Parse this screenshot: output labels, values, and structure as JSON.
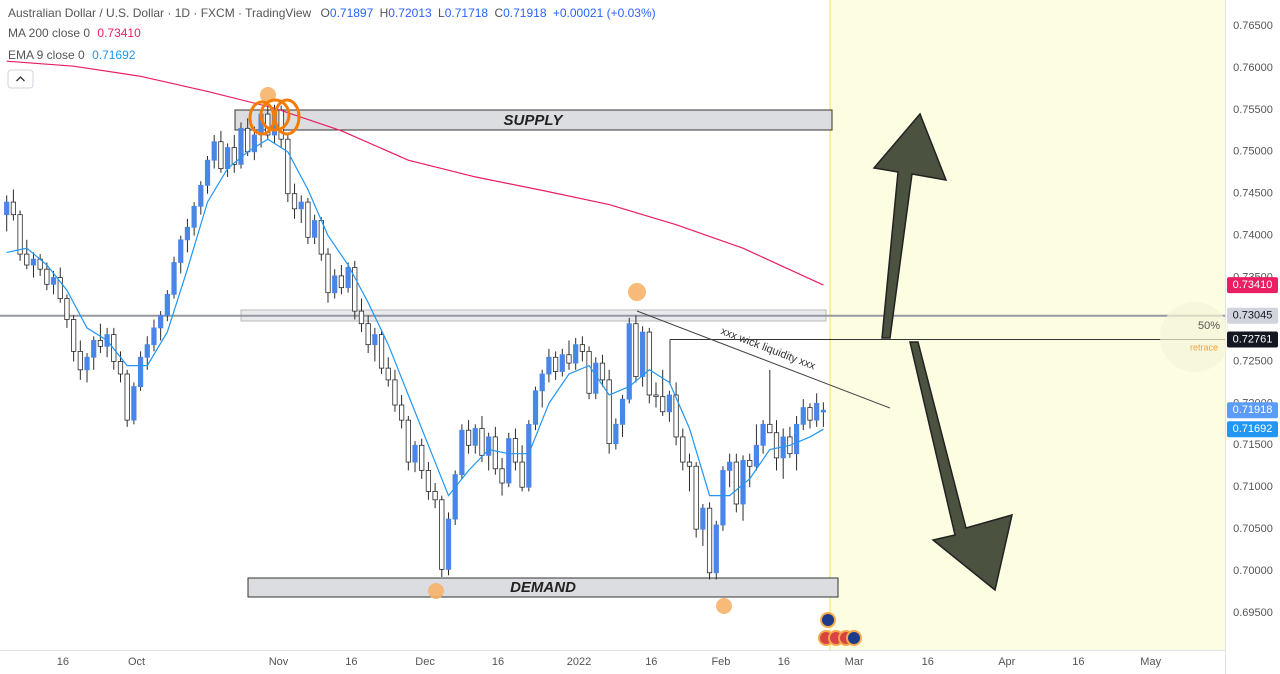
{
  "header": {
    "symbol": "Australian Dollar / U.S. Dollar · 1D · FXCM · TradingView",
    "open_label": "O",
    "open": "0.71897",
    "high_label": "H",
    "high": "0.72013",
    "low_label": "L",
    "low": "0.71718",
    "close_label": "C",
    "close": "0.71918",
    "change": "+0.00021 (+0.03%)"
  },
  "chart_data": {
    "type": "candlestick",
    "up_color": "#4a86e8",
    "down_color": "#ffffff",
    "wick_color": "#2b2b2b",
    "candles": [
      [
        0.7425,
        0.7448,
        0.7405,
        0.744
      ],
      [
        0.744,
        0.7455,
        0.7418,
        0.7425
      ],
      [
        0.7425,
        0.743,
        0.737,
        0.7378
      ],
      [
        0.7378,
        0.7395,
        0.736,
        0.7365
      ],
      [
        0.7365,
        0.738,
        0.735,
        0.7372
      ],
      [
        0.7372,
        0.7378,
        0.7352,
        0.736
      ],
      [
        0.736,
        0.7368,
        0.7335,
        0.7342
      ],
      [
        0.7342,
        0.7358,
        0.733,
        0.735
      ],
      [
        0.735,
        0.7362,
        0.732,
        0.7325
      ],
      [
        0.7325,
        0.733,
        0.729,
        0.73
      ],
      [
        0.73,
        0.7305,
        0.725,
        0.7262
      ],
      [
        0.7262,
        0.7275,
        0.7228,
        0.724
      ],
      [
        0.724,
        0.726,
        0.7225,
        0.7255
      ],
      [
        0.7255,
        0.728,
        0.724,
        0.7275
      ],
      [
        0.7275,
        0.7295,
        0.726,
        0.7268
      ],
      [
        0.7268,
        0.729,
        0.7255,
        0.7282
      ],
      [
        0.7282,
        0.729,
        0.724,
        0.725
      ],
      [
        0.725,
        0.7262,
        0.7225,
        0.7235
      ],
      [
        0.7235,
        0.724,
        0.7172,
        0.718
      ],
      [
        0.718,
        0.7225,
        0.7175,
        0.722
      ],
      [
        0.722,
        0.7262,
        0.7215,
        0.7255
      ],
      [
        0.7255,
        0.728,
        0.724,
        0.727
      ],
      [
        0.727,
        0.73,
        0.7262,
        0.729
      ],
      [
        0.729,
        0.731,
        0.7275,
        0.7305
      ],
      [
        0.7305,
        0.7335,
        0.7298,
        0.733
      ],
      [
        0.733,
        0.7375,
        0.7325,
        0.7368
      ],
      [
        0.7368,
        0.74,
        0.7355,
        0.7395
      ],
      [
        0.7395,
        0.742,
        0.738,
        0.741
      ],
      [
        0.741,
        0.744,
        0.74,
        0.7435
      ],
      [
        0.7435,
        0.7465,
        0.7425,
        0.746
      ],
      [
        0.746,
        0.7495,
        0.745,
        0.749
      ],
      [
        0.749,
        0.752,
        0.748,
        0.7512
      ],
      [
        0.7512,
        0.7525,
        0.7475,
        0.748
      ],
      [
        0.748,
        0.751,
        0.747,
        0.7505
      ],
      [
        0.7505,
        0.752,
        0.7475,
        0.7485
      ],
      [
        0.7485,
        0.7535,
        0.748,
        0.7528
      ],
      [
        0.7528,
        0.754,
        0.7495,
        0.75
      ],
      [
        0.75,
        0.753,
        0.749,
        0.752
      ],
      [
        0.752,
        0.755,
        0.7505,
        0.7545
      ],
      [
        0.7545,
        0.7555,
        0.7515,
        0.752
      ],
      [
        0.752,
        0.7556,
        0.751,
        0.755
      ],
      [
        0.755,
        0.7555,
        0.7505,
        0.7515
      ],
      [
        0.7515,
        0.752,
        0.744,
        0.745
      ],
      [
        0.745,
        0.7462,
        0.742,
        0.7432
      ],
      [
        0.7432,
        0.7448,
        0.7415,
        0.744
      ],
      [
        0.744,
        0.7445,
        0.739,
        0.7398
      ],
      [
        0.7398,
        0.7425,
        0.739,
        0.7418
      ],
      [
        0.7418,
        0.7422,
        0.737,
        0.7378
      ],
      [
        0.7378,
        0.7385,
        0.732,
        0.7332
      ],
      [
        0.7332,
        0.736,
        0.7325,
        0.7352
      ],
      [
        0.7352,
        0.7365,
        0.733,
        0.7338
      ],
      [
        0.7338,
        0.7368,
        0.7332,
        0.7362
      ],
      [
        0.7362,
        0.737,
        0.73,
        0.731
      ],
      [
        0.731,
        0.7325,
        0.7285,
        0.7295
      ],
      [
        0.7295,
        0.7305,
        0.726,
        0.727
      ],
      [
        0.727,
        0.729,
        0.725,
        0.7282
      ],
      [
        0.7282,
        0.7288,
        0.7235,
        0.7242
      ],
      [
        0.7242,
        0.7255,
        0.722,
        0.7228
      ],
      [
        0.7228,
        0.724,
        0.719,
        0.7198
      ],
      [
        0.7198,
        0.721,
        0.717,
        0.718
      ],
      [
        0.718,
        0.7185,
        0.712,
        0.713
      ],
      [
        0.713,
        0.7155,
        0.7118,
        0.715
      ],
      [
        0.715,
        0.7158,
        0.711,
        0.712
      ],
      [
        0.712,
        0.713,
        0.7085,
        0.7095
      ],
      [
        0.7095,
        0.7105,
        0.7075,
        0.7085
      ],
      [
        0.7085,
        0.709,
        0.6993,
        0.7002
      ],
      [
        0.7002,
        0.707,
        0.6995,
        0.7062
      ],
      [
        0.7062,
        0.712,
        0.7055,
        0.7115
      ],
      [
        0.7115,
        0.7175,
        0.711,
        0.7168
      ],
      [
        0.7168,
        0.718,
        0.714,
        0.715
      ],
      [
        0.715,
        0.7175,
        0.714,
        0.717
      ],
      [
        0.717,
        0.7185,
        0.713,
        0.7138
      ],
      [
        0.7138,
        0.7165,
        0.712,
        0.716
      ],
      [
        0.716,
        0.7172,
        0.7115,
        0.7122
      ],
      [
        0.7122,
        0.7135,
        0.709,
        0.7105
      ],
      [
        0.7105,
        0.7165,
        0.71,
        0.7158
      ],
      [
        0.7158,
        0.717,
        0.712,
        0.713
      ],
      [
        0.713,
        0.715,
        0.7095,
        0.71
      ],
      [
        0.71,
        0.718,
        0.7095,
        0.7175
      ],
      [
        0.7175,
        0.722,
        0.7168,
        0.7215
      ],
      [
        0.7215,
        0.724,
        0.7195,
        0.7235
      ],
      [
        0.7235,
        0.7265,
        0.7225,
        0.7255
      ],
      [
        0.7255,
        0.7262,
        0.7228,
        0.7238
      ],
      [
        0.7238,
        0.7265,
        0.7232,
        0.7258
      ],
      [
        0.7258,
        0.7275,
        0.724,
        0.7248
      ],
      [
        0.7248,
        0.7278,
        0.724,
        0.727
      ],
      [
        0.727,
        0.728,
        0.725,
        0.7262
      ],
      [
        0.7262,
        0.7268,
        0.7205,
        0.7212
      ],
      [
        0.7212,
        0.7255,
        0.7205,
        0.7248
      ],
      [
        0.7248,
        0.7258,
        0.722,
        0.7228
      ],
      [
        0.7228,
        0.724,
        0.714,
        0.7152
      ],
      [
        0.7152,
        0.7182,
        0.7145,
        0.7175
      ],
      [
        0.7175,
        0.721,
        0.716,
        0.7205
      ],
      [
        0.7205,
        0.7302,
        0.72,
        0.7295
      ],
      [
        0.7295,
        0.7305,
        0.7225,
        0.7232
      ],
      [
        0.7232,
        0.7292,
        0.722,
        0.7285
      ],
      [
        0.7285,
        0.729,
        0.72,
        0.721
      ],
      [
        0.721,
        0.7225,
        0.7195,
        0.7208
      ],
      [
        0.7208,
        0.724,
        0.7185,
        0.719
      ],
      [
        0.719,
        0.7215,
        0.7178,
        0.721
      ],
      [
        0.721,
        0.7225,
        0.715,
        0.716
      ],
      [
        0.716,
        0.717,
        0.712,
        0.713
      ],
      [
        0.713,
        0.714,
        0.7095,
        0.7125
      ],
      [
        0.7125,
        0.713,
        0.704,
        0.705
      ],
      [
        0.705,
        0.708,
        0.703,
        0.7075
      ],
      [
        0.7075,
        0.7082,
        0.699,
        0.6998
      ],
      [
        0.6998,
        0.706,
        0.699,
        0.7055
      ],
      [
        0.7055,
        0.7125,
        0.7048,
        0.712
      ],
      [
        0.712,
        0.714,
        0.71,
        0.713
      ],
      [
        0.713,
        0.714,
        0.707,
        0.708
      ],
      [
        0.708,
        0.7138,
        0.706,
        0.7132
      ],
      [
        0.7132,
        0.714,
        0.71,
        0.7125
      ],
      [
        0.7125,
        0.7175,
        0.712,
        0.715
      ],
      [
        0.715,
        0.718,
        0.714,
        0.7175
      ],
      [
        0.7175,
        0.724,
        0.7165,
        0.7165
      ],
      [
        0.7165,
        0.718,
        0.712,
        0.7135
      ],
      [
        0.7135,
        0.717,
        0.711,
        0.716
      ],
      [
        0.716,
        0.7172,
        0.7135,
        0.714
      ],
      [
        0.714,
        0.7185,
        0.712,
        0.7175
      ],
      [
        0.7175,
        0.7205,
        0.7168,
        0.7195
      ],
      [
        0.7195,
        0.72,
        0.717,
        0.718
      ],
      [
        0.718,
        0.7212,
        0.7172,
        0.72
      ],
      [
        0.71897,
        0.72013,
        0.71718,
        0.71918
      ]
    ],
    "series": [
      {
        "name": "MA 200 close 0",
        "last_label": "0.73410",
        "color": "#e91e63",
        "x": [
          0,
          10,
          20,
          30,
          40,
          50,
          60,
          70,
          80,
          90,
          100,
          110,
          122
        ],
        "values": [
          0.7608,
          0.7602,
          0.759,
          0.7572,
          0.7552,
          0.7525,
          0.749,
          0.747,
          0.7454,
          0.7437,
          0.7413,
          0.7385,
          0.7341
        ]
      },
      {
        "name": "EMA 9 close 0",
        "last_label": "0.71692",
        "color": "#2196f3",
        "x": [
          0,
          3,
          6,
          9,
          12,
          15,
          18,
          21,
          24,
          27,
          30,
          33,
          36,
          39,
          42,
          45,
          48,
          51,
          54,
          57,
          60,
          63,
          66,
          69,
          72,
          75,
          78,
          81,
          84,
          87,
          90,
          93,
          96,
          99,
          102,
          105,
          108,
          111,
          114,
          117,
          120,
          122
        ],
        "values": [
          0.738,
          0.7385,
          0.7365,
          0.7335,
          0.729,
          0.7275,
          0.7245,
          0.7245,
          0.7285,
          0.736,
          0.744,
          0.748,
          0.75,
          0.7515,
          0.75,
          0.7455,
          0.74,
          0.7365,
          0.732,
          0.727,
          0.721,
          0.715,
          0.709,
          0.712,
          0.7145,
          0.714,
          0.714,
          0.72,
          0.7235,
          0.7245,
          0.721,
          0.722,
          0.724,
          0.7225,
          0.717,
          0.709,
          0.709,
          0.711,
          0.7145,
          0.715,
          0.716,
          0.71692
        ]
      }
    ],
    "price_labels": [
      {
        "value": 0.7341,
        "label": "0.73410",
        "color": "#e91e63",
        "text_color": "#ffffff"
      },
      {
        "value": 0.73045,
        "label": "0.73045",
        "color": "#d1d4dc",
        "text_color": "#131722"
      },
      {
        "value": 0.72761,
        "label": "0.72761",
        "color": "#131722",
        "text_color": "#ffffff"
      },
      {
        "value": 0.71918,
        "label": "0.71918",
        "color": "#5b9cf6",
        "text_color": "#ffffff"
      },
      {
        "value": 0.71692,
        "label": "0.71692",
        "color": "#2196f3",
        "text_color": "#ffffff"
      }
    ],
    "xlim": [
      -1,
      182
    ],
    "xticks": [
      {
        "value": 8.4,
        "label": "16"
      },
      {
        "value": 19.4,
        "label": "Oct"
      },
      {
        "value": 40.6,
        "label": "Nov"
      },
      {
        "value": 51.5,
        "label": "16"
      },
      {
        "value": 62.5,
        "label": "Dec"
      },
      {
        "value": 73.4,
        "label": "16"
      },
      {
        "value": 85.5,
        "label": "2022"
      },
      {
        "value": 96.3,
        "label": "16"
      },
      {
        "value": 106.7,
        "label": "Feb"
      },
      {
        "value": 116.1,
        "label": "16"
      },
      {
        "value": 126.6,
        "label": "Mar"
      },
      {
        "value": 137.6,
        "label": "16"
      },
      {
        "value": 149.4,
        "label": "Apr"
      },
      {
        "value": 160.1,
        "label": "16"
      },
      {
        "value": 170.9,
        "label": "May"
      }
    ],
    "ylim": [
      0.69059,
      0.7681
    ],
    "yticks": [
      {
        "value": 0.695,
        "label": "0.69500"
      },
      {
        "value": 0.7,
        "label": "0.70000"
      },
      {
        "value": 0.705,
        "label": "0.70500"
      },
      {
        "value": 0.71,
        "label": "0.71000"
      },
      {
        "value": 0.715,
        "label": "0.71500"
      },
      {
        "value": 0.72,
        "label": "0.72000"
      },
      {
        "value": 0.725,
        "label": "0.72500"
      },
      {
        "value": 0.73,
        "label": "0.73000"
      },
      {
        "value": 0.735,
        "label": "0.73500"
      },
      {
        "value": 0.74,
        "label": "0.74000"
      },
      {
        "value": 0.745,
        "label": "0.74500"
      },
      {
        "value": 0.75,
        "label": "0.75000"
      },
      {
        "value": 0.755,
        "label": "0.75500"
      },
      {
        "value": 0.76,
        "label": "0.76000"
      },
      {
        "value": 0.765,
        "label": "0.76500"
      }
    ],
    "annotations": {
      "supply": "SUPPLY",
      "demand": "DEMAND",
      "trendline": "xxx wick liquidity xxx",
      "fib_level": "50%",
      "fib_name": "retrace"
    }
  }
}
